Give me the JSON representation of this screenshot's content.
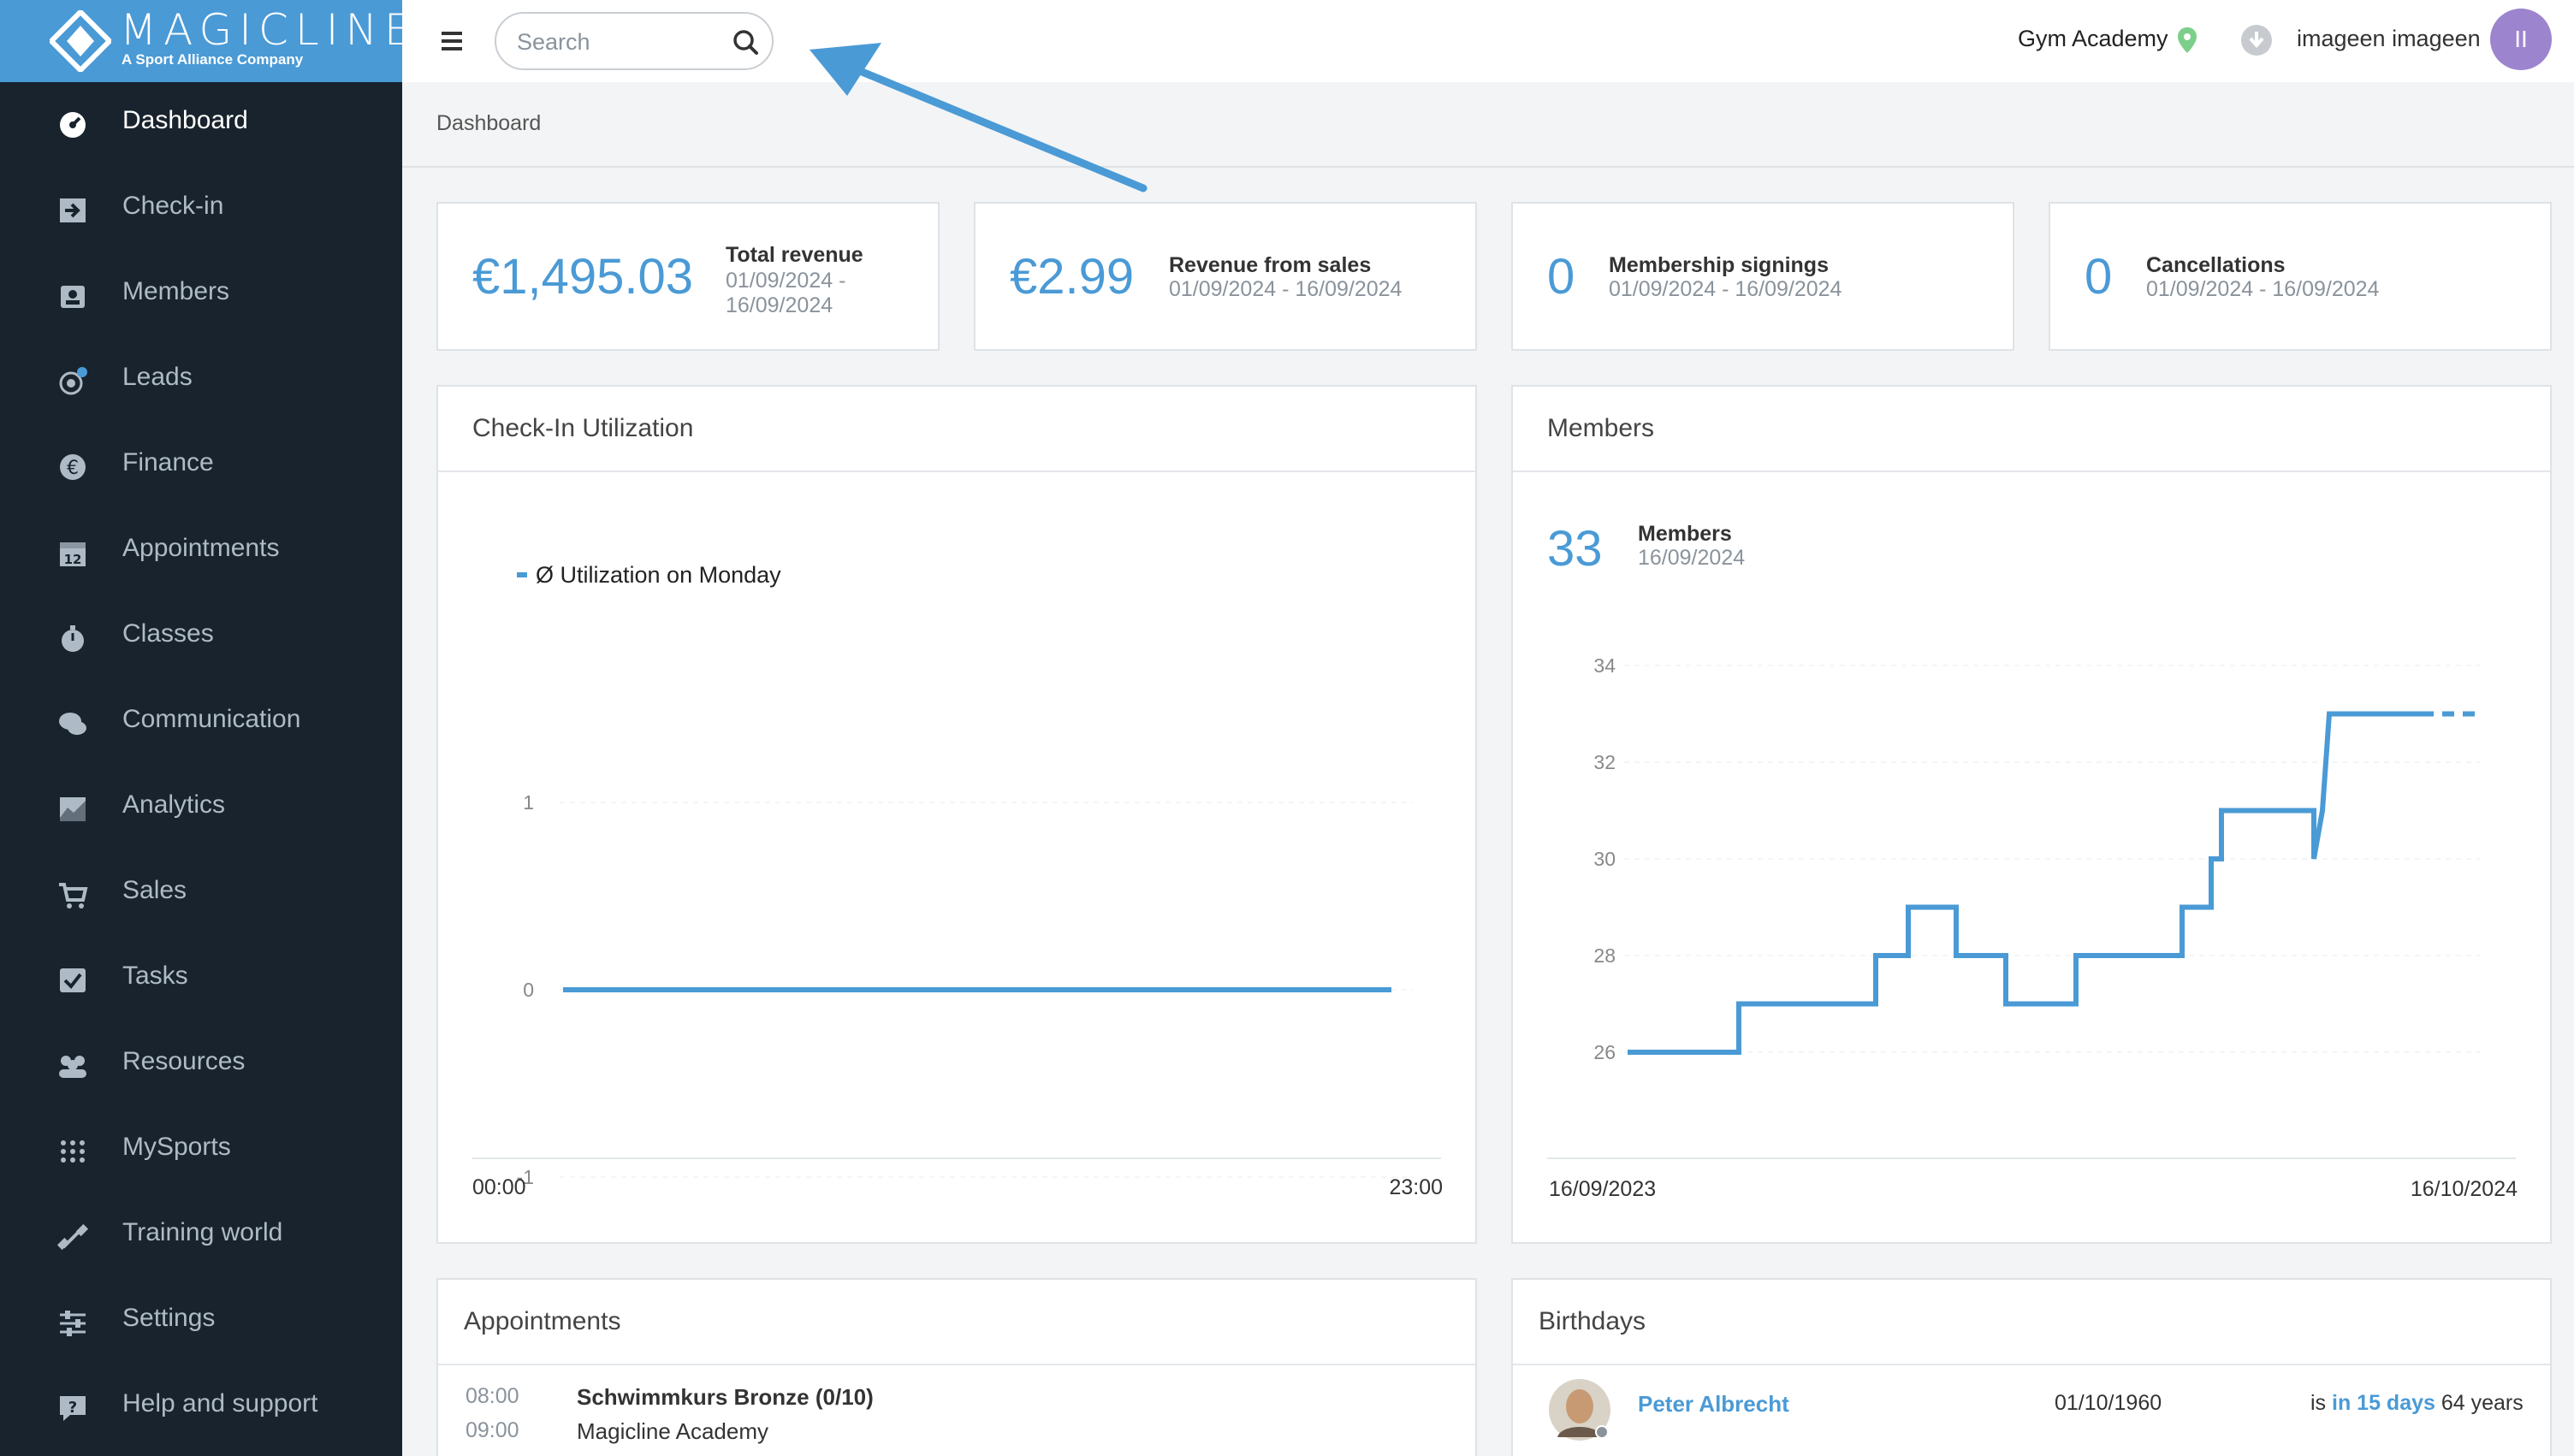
{
  "brand": {
    "name": "MAGICLINE",
    "tagline": "A Sport Alliance Company"
  },
  "topbar": {
    "search_placeholder": "Search",
    "location": "Gym Academy",
    "user": "imageen imageen",
    "avatar_initials": "II"
  },
  "breadcrumb": "Dashboard",
  "sidebar": {
    "items": [
      {
        "label": "Dashboard",
        "icon": "dashboard-icon",
        "active": true
      },
      {
        "label": "Check-in",
        "icon": "check-in-icon"
      },
      {
        "label": "Members",
        "icon": "members-icon"
      },
      {
        "label": "Leads",
        "icon": "leads-icon"
      },
      {
        "label": "Finance",
        "icon": "euro-icon"
      },
      {
        "label": "Appointments",
        "icon": "calendar-icon"
      },
      {
        "label": "Classes",
        "icon": "stopwatch-icon"
      },
      {
        "label": "Communication",
        "icon": "chat-icon"
      },
      {
        "label": "Analytics",
        "icon": "analytics-icon"
      },
      {
        "label": "Sales",
        "icon": "cart-icon"
      },
      {
        "label": "Tasks",
        "icon": "checkbox-icon"
      },
      {
        "label": "Resources",
        "icon": "people-icon"
      },
      {
        "label": "MySports",
        "icon": "grid-dots-icon"
      },
      {
        "label": "Training world",
        "icon": "dumbbell-icon"
      },
      {
        "label": "Settings",
        "icon": "sliders-icon"
      },
      {
        "label": "Help and support",
        "icon": "help-icon"
      }
    ]
  },
  "kpis": [
    {
      "value": "€1,495.03",
      "title": "Total revenue",
      "date": "01/09/2024 - 16/09/2024"
    },
    {
      "value": "€2.99",
      "title": "Revenue from sales",
      "date": "01/09/2024 - 16/09/2024"
    },
    {
      "value": "0",
      "title": "Membership signings",
      "date": "01/09/2024 - 16/09/2024"
    },
    {
      "value": "0",
      "title": "Cancellations",
      "date": "01/09/2024 - 16/09/2024"
    }
  ],
  "checkin": {
    "title": "Check-In Utilization"
  },
  "members": {
    "title": "Members",
    "count": "33",
    "label": "Members",
    "date": "16/09/2024"
  },
  "appointments": {
    "title": "Appointments",
    "start": "08:00",
    "end": "09:00",
    "name": "Schwimmkurs Bronze (0/10)",
    "location": "Magicline Academy"
  },
  "birthdays": {
    "title": "Birthdays",
    "name": "Peter Albrecht",
    "date": "01/10/1960",
    "is": "is",
    "when": "in 15 days",
    "age": "64 years"
  },
  "colors": {
    "accent": "#4a9ad6",
    "sidebar": "#18232d"
  },
  "chart_data": [
    {
      "type": "line",
      "title": "",
      "legend": [
        "Ø Utilization on Monday"
      ],
      "xlabel": "",
      "ylabel": "",
      "x": [
        "00:00",
        "23:00"
      ],
      "series": [
        {
          "name": "Ø Utilization on Monday",
          "values": [
            0,
            0
          ]
        }
      ],
      "ylim": [
        -1,
        1
      ],
      "yticks": [
        "1",
        "0",
        "-1"
      ],
      "grid": true,
      "legend_position": "top-left"
    },
    {
      "type": "line",
      "title": "",
      "xlabel": "",
      "ylabel": "",
      "x_labels": [
        "16/09/2023",
        "16/10/2024"
      ],
      "yticks": [
        "34",
        "32",
        "30",
        "28",
        "26"
      ],
      "ylim": [
        25.5,
        34
      ],
      "series": [
        {
          "values": [
            26,
            26,
            27,
            27,
            28,
            28,
            29,
            29,
            28,
            28,
            27,
            27,
            28,
            28,
            29,
            29,
            30,
            30,
            31,
            31,
            30,
            31,
            33,
            33
          ]
        }
      ],
      "projection": [
        33,
        33
      ],
      "grid": true
    }
  ]
}
